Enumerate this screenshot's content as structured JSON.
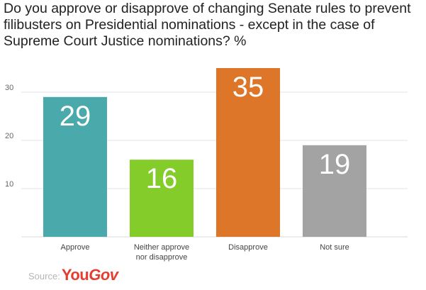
{
  "title": "Do you approve or disapprove of changing Senate rules to prevent filibusters on Presidential nominations - except in the case of Supreme Court Justice nominations? %",
  "source_label": "Source:",
  "logo": {
    "you": "You",
    "gov": "Gov"
  },
  "chart_data": {
    "type": "bar",
    "title": "Do you approve or disapprove of changing Senate rules to prevent filibusters on Presidential nominations - except in the case of Supreme Court Justice nominations? %",
    "categories": [
      [
        "Approve"
      ],
      [
        "Neither approve",
        "nor disapprove"
      ],
      [
        "Disapprove"
      ],
      [
        "Not sure"
      ]
    ],
    "values": [
      29,
      16,
      35,
      19
    ],
    "colors": [
      "#4aa9aa",
      "#84cc29",
      "#dd7628",
      "#a3a3a3"
    ],
    "yticks": [
      10,
      20,
      30
    ],
    "ylim": [
      0,
      35
    ],
    "grid": true,
    "data_labels": true
  }
}
